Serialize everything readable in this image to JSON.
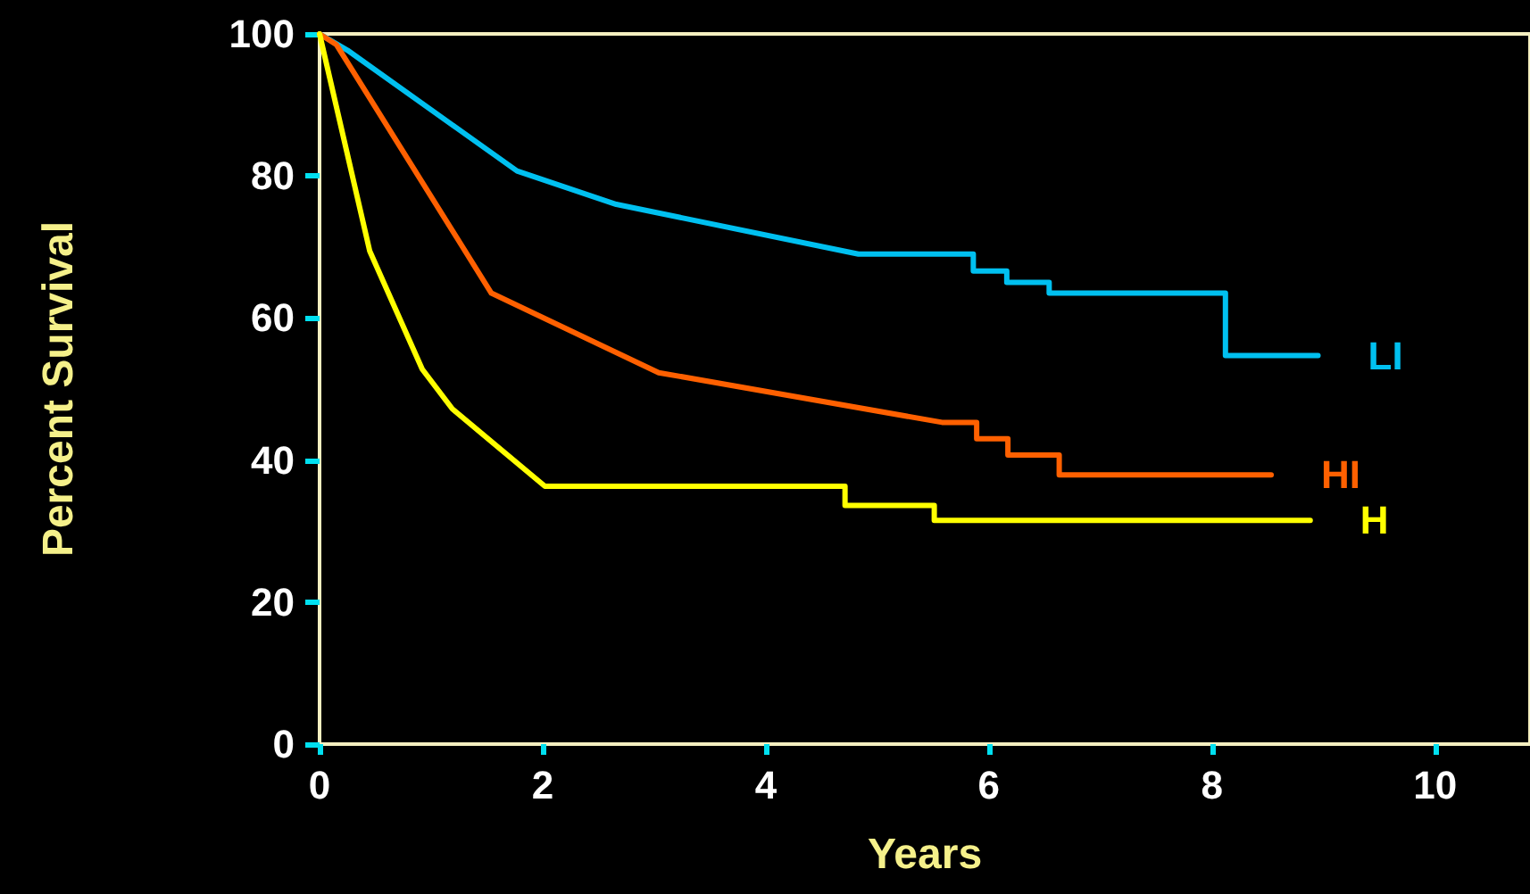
{
  "chart_data": {
    "type": "line",
    "xlabel": "Years",
    "ylabel": "Percent Survival",
    "xlim": [
      0,
      10.85
    ],
    "xticks": [
      0,
      2,
      4,
      6,
      8,
      10
    ],
    "ylim": [
      0,
      100
    ],
    "yticks": [
      0,
      20,
      40,
      60,
      80,
      100
    ],
    "grid": false,
    "legend": false,
    "marker": "none",
    "line_style": "solid",
    "series": [
      {
        "name": "LI",
        "color": "#00c0f0",
        "x": [
          0,
          0.25,
          1.77,
          2.66,
          4.83,
          5.86,
          5.86,
          6.16,
          6.16,
          6.54,
          6.54,
          8.12,
          8.12,
          8.95
        ],
        "values": [
          100,
          97.7,
          80.7,
          76,
          69,
          69,
          66.6,
          66.6,
          65,
          65,
          63.5,
          63.5,
          54.7,
          54.7
        ]
      },
      {
        "name": "HI",
        "color": "#ff6000",
        "x": [
          0,
          0.15,
          1.54,
          3.04,
          5.58,
          5.89,
          5.89,
          6.17,
          6.17,
          6.63,
          6.63,
          8.53
        ],
        "values": [
          100,
          98.5,
          63.5,
          52.3,
          45.3,
          45.3,
          43,
          43,
          40.7,
          40.7,
          37.9,
          37.9
        ]
      },
      {
        "name": "H",
        "color": "#ffff00",
        "x": [
          0,
          0.45,
          0.92,
          1.19,
          2.02,
          4.71,
          4.71,
          5.51,
          5.51,
          8.88
        ],
        "values": [
          100,
          69.4,
          52.8,
          47.2,
          36.3,
          36.3,
          33.6,
          33.6,
          31.5,
          31.5
        ]
      }
    ]
  }
}
